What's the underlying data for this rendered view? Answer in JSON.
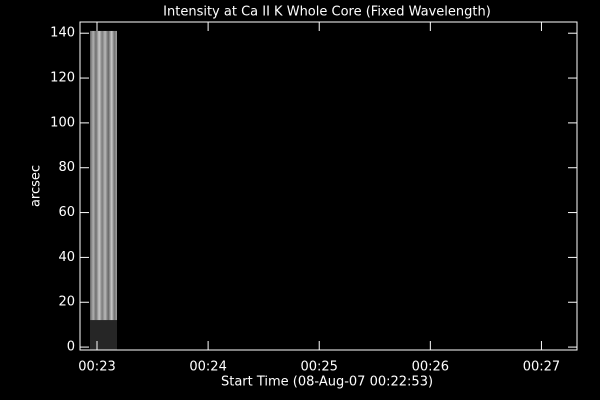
{
  "chart_data": {
    "type": "image",
    "title": "Intensity at Ca II K Whole Core (Fixed Wavelength)",
    "x_label": "Start Time (08-Aug-07 00:22:53)",
    "y_label": "arcsec",
    "xlim": [
      22.847,
      27.32
    ],
    "xticks": [
      {
        "value": 23,
        "label": "00:23"
      },
      {
        "value": 24,
        "label": "00:24"
      },
      {
        "value": 25,
        "label": "00:25"
      },
      {
        "value": 26,
        "label": "00:26"
      },
      {
        "value": 27,
        "label": "00:27"
      }
    ],
    "ylim": [
      -1.3,
      145
    ],
    "yticks": [
      0,
      20,
      40,
      60,
      80,
      100,
      120,
      140
    ],
    "blocks": [
      {
        "x": [
          22.937,
          23.18
        ],
        "y": [
          12,
          141
        ],
        "color": "#8a8a8a"
      },
      {
        "x": [
          22.937,
          23.18
        ],
        "y": [
          -1.3,
          12
        ],
        "color": "#262626"
      }
    ]
  }
}
